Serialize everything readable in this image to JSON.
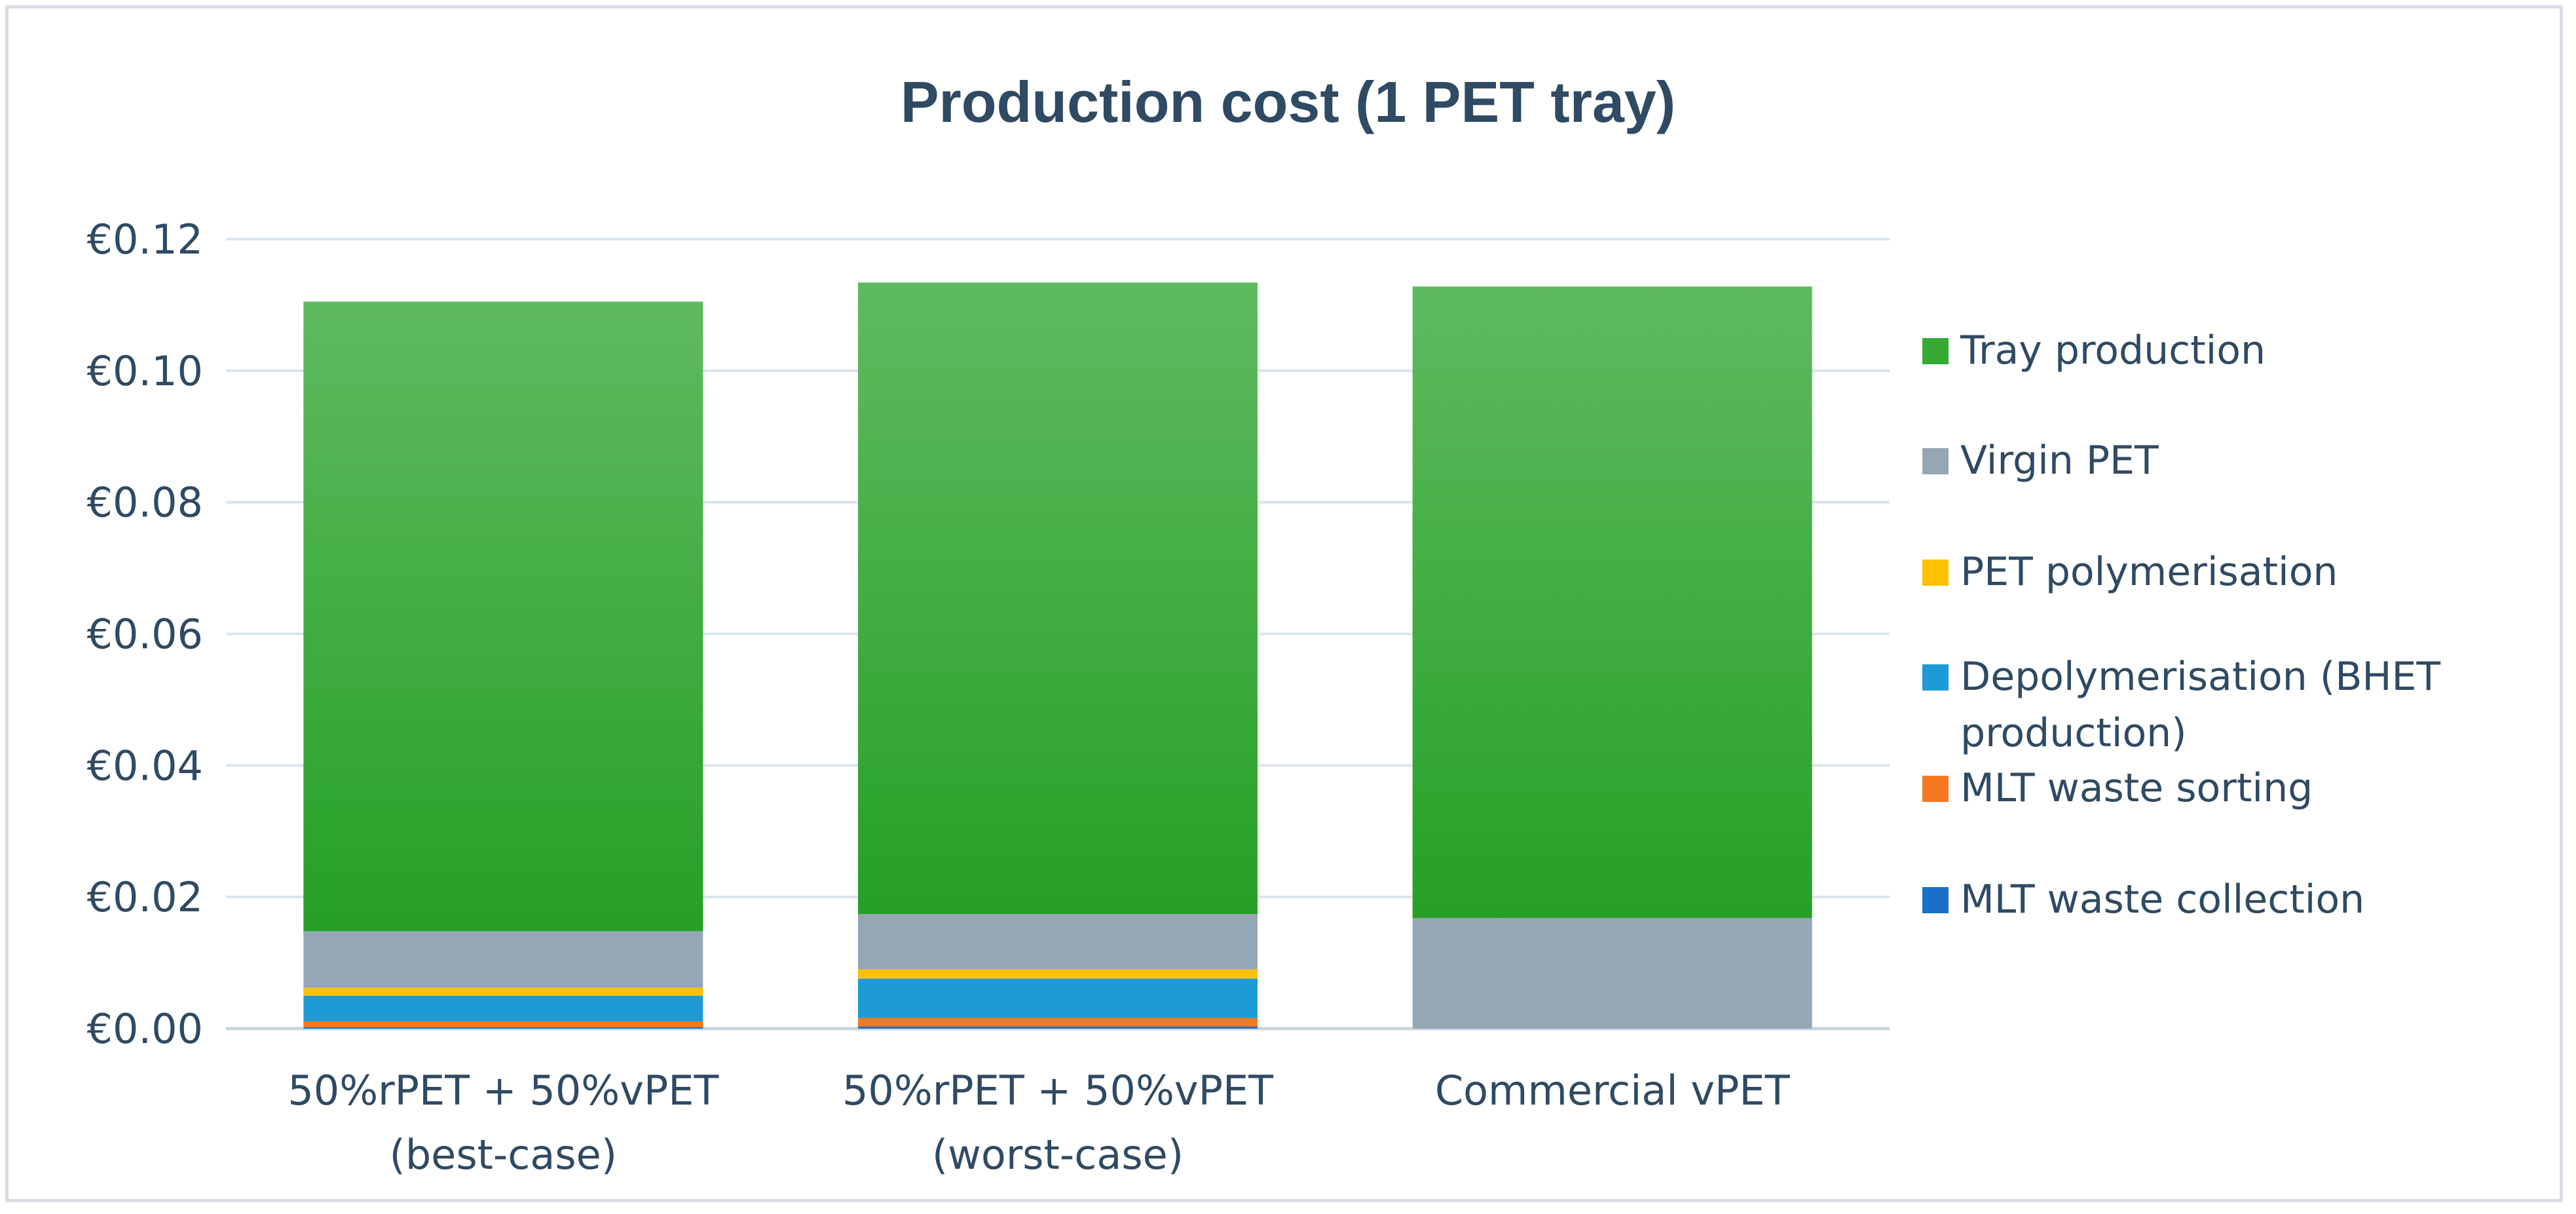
{
  "chart_data": {
    "type": "bar",
    "stacked": true,
    "title": "Production cost (1 PET tray)",
    "xlabel": "",
    "ylabel": "",
    "ylim": [
      0,
      0.12
    ],
    "y_ticks": [
      "€0.00",
      "€0.02",
      "€0.04",
      "€0.06",
      "€0.08",
      "€0.10",
      "€0.12"
    ],
    "y_tick_values": [
      0,
      0.02,
      0.04,
      0.06,
      0.08,
      0.1,
      0.12
    ],
    "categories": [
      [
        "50%rPET + 50%vPET",
        "(best-case)"
      ],
      [
        "50%rPET + 50%vPET",
        "(worst-case)"
      ],
      [
        "Commercial vPET"
      ]
    ],
    "legend_position": "right",
    "series": [
      {
        "name": "MLT waste collection",
        "color": "#1a6fc9",
        "values": [
          0.0002,
          0.0003,
          0
        ]
      },
      {
        "name": "MLT waste sorting",
        "color": "#f47920",
        "values": [
          0.0009,
          0.0013,
          0
        ]
      },
      {
        "name": "Depolymerisation (BHET production)",
        "color": "#1e9ad6",
        "values": [
          0.0039,
          0.006,
          0
        ]
      },
      {
        "name": "PET polymerisation",
        "color": "#ffc000",
        "values": [
          0.0012,
          0.0014,
          0
        ]
      },
      {
        "name": "Virgin PET",
        "color": "#95a7b5",
        "values": [
          0.0086,
          0.0084,
          0.0168
        ]
      },
      {
        "name": "Tray production",
        "color": "#35ab35",
        "values": [
          0.0957,
          0.096,
          0.096
        ]
      }
    ],
    "legend_order": [
      5,
      4,
      3,
      2,
      1,
      0
    ]
  }
}
